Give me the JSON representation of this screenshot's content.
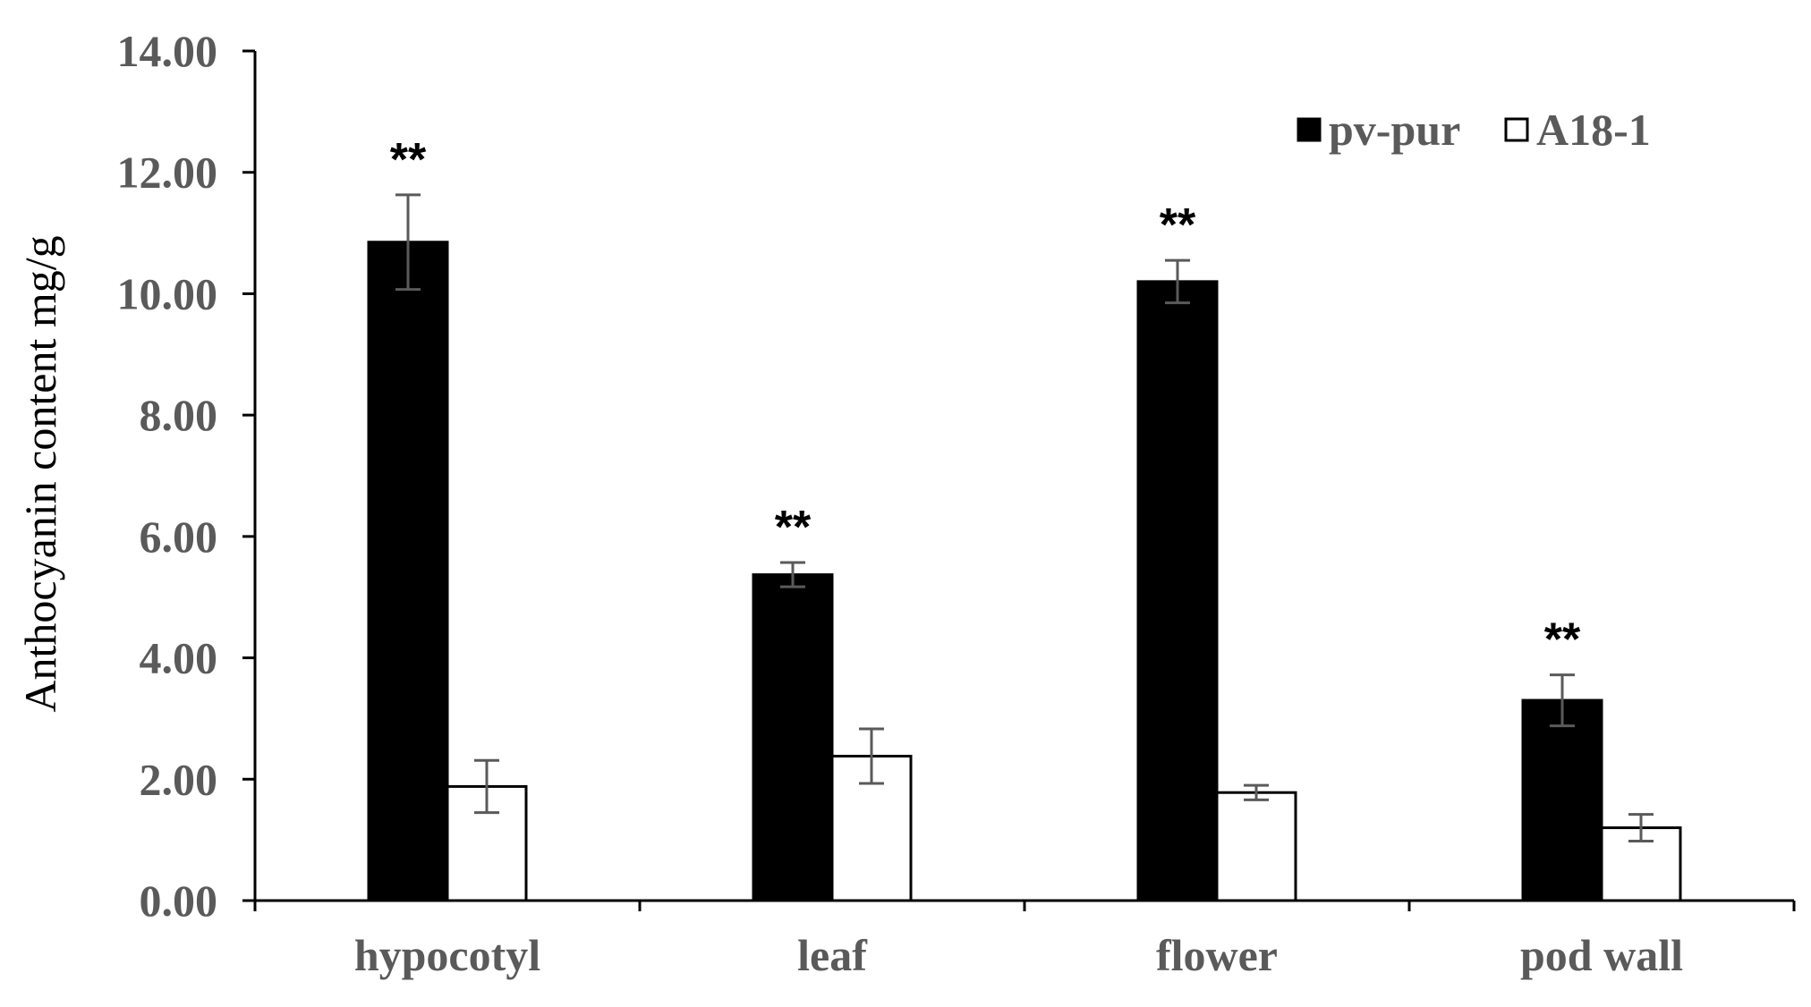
{
  "chart_data": {
    "type": "bar",
    "title": "",
    "xlabel": "",
    "ylabel": "Anthocyanin content mg/g",
    "ylim": [
      0,
      14
    ],
    "yticks": [
      "0.00",
      "2.00",
      "4.00",
      "6.00",
      "8.00",
      "10.00",
      "12.00",
      "14.00"
    ],
    "categories": [
      "hypocotyl",
      "leaf",
      "flower",
      "pod wall"
    ],
    "series": [
      {
        "name": "pv-pur",
        "fill": "#000000",
        "values": [
          10.85,
          5.37,
          10.2,
          3.3
        ],
        "errors": [
          0.78,
          0.2,
          0.35,
          0.42
        ]
      },
      {
        "name": "A18-1",
        "fill": "#ffffff",
        "values": [
          1.88,
          2.38,
          1.78,
          1.2
        ],
        "errors": [
          0.43,
          0.45,
          0.12,
          0.22
        ]
      }
    ],
    "annotations": [
      {
        "category": "hypocotyl",
        "text": "**"
      },
      {
        "category": "leaf",
        "text": "**"
      },
      {
        "category": "flower",
        "text": "**"
      },
      {
        "category": "pod wall",
        "text": "**"
      }
    ],
    "grid": false,
    "legend_position": "top-right"
  }
}
